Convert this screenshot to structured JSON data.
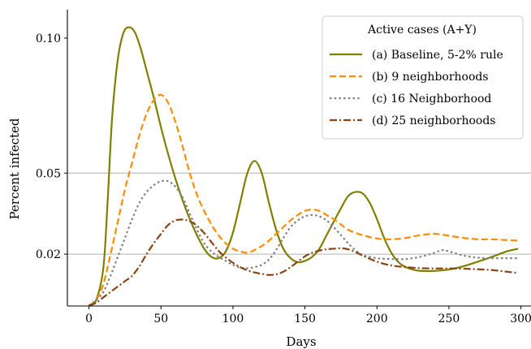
{
  "chart_data": {
    "type": "line",
    "xlabel": "Days",
    "ylabel": "Percent infected",
    "xlim": [
      -15,
      307
    ],
    "ylim": [
      0.0008,
      0.1105
    ],
    "xticks": [
      0,
      50,
      100,
      150,
      200,
      250,
      300
    ],
    "xtick_labels": [
      "0",
      "50",
      "100",
      "150",
      "200",
      "250",
      "300"
    ],
    "yticks": [
      0.02,
      0.05,
      0.1
    ],
    "ytick_labels": [
      "0.02",
      "0.05",
      "0.10"
    ],
    "hlines": [
      0.02,
      0.05
    ],
    "legend": {
      "title": "Active cases (A+Y)",
      "position": "top-right"
    },
    "series": [
      {
        "name": "(a) Baseline, 5-2% rule",
        "color": "#808000",
        "dash": "solid",
        "x": [
          0,
          5,
          10,
          13,
          16,
          20,
          24,
          28,
          32,
          36,
          40,
          45,
          50,
          55,
          60,
          65,
          70,
          75,
          80,
          85,
          90,
          95,
          100,
          105,
          110,
          115,
          120,
          125,
          130,
          135,
          140,
          145,
          150,
          155,
          160,
          165,
          170,
          175,
          180,
          185,
          190,
          195,
          200,
          205,
          210,
          215,
          220,
          225,
          230,
          240,
          250,
          260,
          270,
          280,
          290,
          298
        ],
        "y": [
          0.001,
          0.003,
          0.015,
          0.04,
          0.07,
          0.092,
          0.102,
          0.104,
          0.102,
          0.096,
          0.088,
          0.078,
          0.067,
          0.057,
          0.048,
          0.04,
          0.033,
          0.027,
          0.022,
          0.019,
          0.0185,
          0.021,
          0.028,
          0.039,
          0.05,
          0.0545,
          0.05,
          0.039,
          0.029,
          0.022,
          0.0185,
          0.017,
          0.0175,
          0.019,
          0.022,
          0.027,
          0.032,
          0.037,
          0.0415,
          0.043,
          0.0425,
          0.039,
          0.033,
          0.026,
          0.0205,
          0.017,
          0.0152,
          0.0143,
          0.0138,
          0.0138,
          0.0143,
          0.0155,
          0.0172,
          0.019,
          0.021,
          0.022
        ]
      },
      {
        "name": "(b) 9 neighborhoods",
        "color": "#ff8c00",
        "dash": "dashed",
        "x": [
          0,
          5,
          10,
          15,
          20,
          25,
          30,
          35,
          40,
          45,
          50,
          55,
          60,
          65,
          70,
          75,
          80,
          85,
          90,
          95,
          100,
          105,
          110,
          115,
          120,
          125,
          130,
          135,
          140,
          145,
          150,
          155,
          160,
          165,
          170,
          175,
          180,
          190,
          200,
          210,
          220,
          230,
          240,
          250,
          260,
          270,
          280,
          290,
          298
        ],
        "y": [
          0.001,
          0.003,
          0.009,
          0.02,
          0.032,
          0.044,
          0.054,
          0.064,
          0.072,
          0.077,
          0.079,
          0.076,
          0.069,
          0.06,
          0.05,
          0.042,
          0.036,
          0.031,
          0.027,
          0.024,
          0.022,
          0.021,
          0.0205,
          0.0215,
          0.023,
          0.025,
          0.0275,
          0.03,
          0.0325,
          0.0345,
          0.036,
          0.0365,
          0.036,
          0.0345,
          0.033,
          0.031,
          0.029,
          0.027,
          0.0258,
          0.0255,
          0.026,
          0.027,
          0.0275,
          0.0268,
          0.026,
          0.0255,
          0.0255,
          0.0252,
          0.025
        ]
      },
      {
        "name": "(c) 16 Neighborhood",
        "color": "#808080",
        "dash": "dotted",
        "x": [
          0,
          5,
          10,
          15,
          20,
          25,
          30,
          35,
          40,
          45,
          50,
          55,
          60,
          65,
          70,
          75,
          80,
          85,
          90,
          95,
          100,
          105,
          110,
          115,
          120,
          125,
          130,
          135,
          140,
          145,
          150,
          155,
          160,
          165,
          170,
          175,
          180,
          185,
          190,
          200,
          210,
          220,
          230,
          240,
          245,
          250,
          260,
          270,
          280,
          290,
          298
        ],
        "y": [
          0.001,
          0.003,
          0.006,
          0.012,
          0.019,
          0.026,
          0.033,
          0.039,
          0.043,
          0.0455,
          0.047,
          0.047,
          0.045,
          0.041,
          0.035,
          0.029,
          0.024,
          0.021,
          0.019,
          0.0175,
          0.016,
          0.015,
          0.0148,
          0.0152,
          0.016,
          0.018,
          0.0215,
          0.026,
          0.03,
          0.0325,
          0.034,
          0.0345,
          0.034,
          0.0325,
          0.03,
          0.027,
          0.024,
          0.0215,
          0.0197,
          0.0185,
          0.0182,
          0.0182,
          0.019,
          0.0205,
          0.0215,
          0.021,
          0.0195,
          0.0187,
          0.0185,
          0.0185,
          0.0185
        ]
      },
      {
        "name": "(d) 25 neighborhoods",
        "color": "#8b4513",
        "dash": "dashdot",
        "x": [
          0,
          5,
          10,
          15,
          20,
          25,
          30,
          35,
          40,
          45,
          50,
          55,
          60,
          65,
          70,
          75,
          80,
          85,
          90,
          95,
          100,
          105,
          110,
          115,
          120,
          125,
          130,
          135,
          140,
          145,
          150,
          155,
          160,
          165,
          170,
          175,
          180,
          185,
          190,
          200,
          210,
          220,
          230,
          240,
          250,
          260,
          270,
          280,
          290,
          298
        ],
        "y": [
          0.001,
          0.002,
          0.004,
          0.006,
          0.008,
          0.01,
          0.012,
          0.0155,
          0.02,
          0.024,
          0.0275,
          0.0308,
          0.0325,
          0.0328,
          0.0322,
          0.0305,
          0.0278,
          0.0245,
          0.0212,
          0.0188,
          0.0168,
          0.0152,
          0.014,
          0.0132,
          0.0127,
          0.0123,
          0.0125,
          0.0135,
          0.0152,
          0.0172,
          0.0192,
          0.0205,
          0.0213,
          0.0218,
          0.022,
          0.0222,
          0.0218,
          0.0208,
          0.0195,
          0.0172,
          0.0158,
          0.0152,
          0.0148,
          0.0147,
          0.0147,
          0.0146,
          0.0144,
          0.0141,
          0.0135,
          0.013
        ]
      }
    ]
  }
}
